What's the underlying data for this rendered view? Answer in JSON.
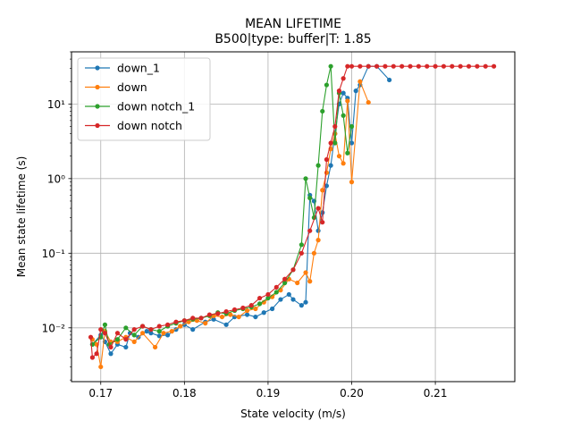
{
  "chart_data": {
    "type": "line",
    "title": "MEAN LIFETIME",
    "subtitle": "B500|type: buffer|T: 1.85",
    "xlabel": "State velocity (m/s)",
    "ylabel": "Mean state lifetime (s)",
    "xlim": [
      0.1665,
      0.2195
    ],
    "ylim": [
      0.0019,
      50
    ],
    "yscale": "log",
    "grid": true,
    "legend_position": "top-left",
    "x_ticks": [
      0.17,
      0.18,
      0.19,
      0.2,
      0.21
    ],
    "x_tick_labels": [
      "0.17",
      "0.18",
      "0.19",
      "0.20",
      "0.21"
    ],
    "y_ticks": [
      0.01,
      0.1,
      1,
      10
    ],
    "y_tick_labels": [
      "10⁻²",
      "10⁻¹",
      "10⁰",
      "10¹"
    ],
    "series": [
      {
        "name": "down_1",
        "color": "#1f77b4",
        "x": [
          0.169,
          0.17,
          0.1705,
          0.1712,
          0.172,
          0.173,
          0.1735,
          0.1745,
          0.1755,
          0.176,
          0.177,
          0.178,
          0.179,
          0.18,
          0.181,
          0.1825,
          0.1835,
          0.185,
          0.186,
          0.1875,
          0.1885,
          0.1895,
          0.1905,
          0.1915,
          0.1925,
          0.193,
          0.194,
          0.1945,
          0.195,
          0.1955,
          0.196,
          0.1965,
          0.197,
          0.1975,
          0.198,
          0.1985,
          0.199,
          0.1995,
          0.2,
          0.2005,
          0.201,
          0.202,
          0.203,
          0.2045
        ],
        "y": [
          0.006,
          0.008,
          0.0065,
          0.0045,
          0.006,
          0.0055,
          0.0085,
          0.0075,
          0.009,
          0.0085,
          0.0078,
          0.008,
          0.0095,
          0.011,
          0.0095,
          0.012,
          0.013,
          0.011,
          0.014,
          0.015,
          0.014,
          0.016,
          0.018,
          0.024,
          0.028,
          0.024,
          0.02,
          0.022,
          0.6,
          0.5,
          0.2,
          0.35,
          0.8,
          1.5,
          4,
          10,
          14,
          12,
          3,
          15,
          18,
          32,
          32,
          21
        ]
      },
      {
        "name": "down",
        "color": "#ff7f0e",
        "x": [
          0.169,
          0.1695,
          0.17,
          0.1705,
          0.1712,
          0.172,
          0.173,
          0.174,
          0.175,
          0.1765,
          0.1775,
          0.1785,
          0.1795,
          0.1805,
          0.1815,
          0.1825,
          0.1835,
          0.1845,
          0.1855,
          0.1865,
          0.1875,
          0.1885,
          0.1895,
          0.1905,
          0.1915,
          0.1925,
          0.1935,
          0.1945,
          0.195,
          0.1955,
          0.196,
          0.1965,
          0.197,
          0.1975,
          0.198,
          0.1985,
          0.199,
          0.1995,
          0.2,
          0.201,
          0.202
        ],
        "y": [
          0.007,
          0.006,
          0.003,
          0.009,
          0.0065,
          0.0065,
          0.0075,
          0.0065,
          0.0085,
          0.0055,
          0.0085,
          0.009,
          0.0105,
          0.012,
          0.0125,
          0.0115,
          0.0145,
          0.014,
          0.015,
          0.014,
          0.017,
          0.018,
          0.022,
          0.026,
          0.032,
          0.045,
          0.04,
          0.055,
          0.042,
          0.1,
          0.15,
          0.7,
          1.2,
          2.5,
          4,
          2,
          1.6,
          11,
          0.9,
          20,
          10.5
        ]
      },
      {
        "name": "down notch_1",
        "color": "#2ca02c",
        "x": [
          0.169,
          0.17,
          0.1705,
          0.171,
          0.172,
          0.173,
          0.174,
          0.175,
          0.176,
          0.177,
          0.178,
          0.179,
          0.18,
          0.181,
          0.182,
          0.183,
          0.184,
          0.185,
          0.186,
          0.187,
          0.188,
          0.189,
          0.19,
          0.191,
          0.192,
          0.193,
          0.194,
          0.1945,
          0.195,
          0.1955,
          0.196,
          0.1965,
          0.197,
          0.1975,
          0.198,
          0.1985,
          0.199,
          0.1995,
          0.2
        ],
        "y": [
          0.006,
          0.0075,
          0.011,
          0.006,
          0.007,
          0.01,
          0.008,
          0.0105,
          0.0095,
          0.009,
          0.0105,
          0.0115,
          0.0125,
          0.013,
          0.0135,
          0.0145,
          0.016,
          0.0155,
          0.017,
          0.018,
          0.019,
          0.021,
          0.025,
          0.03,
          0.04,
          0.06,
          0.13,
          1.0,
          0.55,
          0.3,
          1.5,
          8,
          18,
          32,
          3,
          14,
          7,
          2.2,
          5
        ]
      },
      {
        "name": "down notch",
        "color": "#d62728",
        "x": [
          0.1688,
          0.169,
          0.1695,
          0.17,
          0.1705,
          0.1712,
          0.172,
          0.173,
          0.174,
          0.175,
          0.176,
          0.177,
          0.178,
          0.179,
          0.18,
          0.181,
          0.182,
          0.183,
          0.184,
          0.185,
          0.186,
          0.187,
          0.188,
          0.189,
          0.19,
          0.191,
          0.192,
          0.193,
          0.194,
          0.195,
          0.196,
          0.1965,
          0.197,
          0.1975,
          0.198,
          0.1985,
          0.199,
          0.1995,
          0.2,
          0.201,
          0.202,
          0.203,
          0.204,
          0.205,
          0.206,
          0.207,
          0.208,
          0.209,
          0.21,
          0.211,
          0.212,
          0.213,
          0.214,
          0.215,
          0.216,
          0.217
        ],
        "y": [
          0.0075,
          0.004,
          0.0045,
          0.0095,
          0.0085,
          0.0055,
          0.0085,
          0.007,
          0.0095,
          0.0105,
          0.0095,
          0.0105,
          0.011,
          0.012,
          0.0125,
          0.0135,
          0.0135,
          0.015,
          0.0155,
          0.0165,
          0.0175,
          0.0185,
          0.02,
          0.025,
          0.028,
          0.035,
          0.045,
          0.06,
          0.1,
          0.2,
          0.4,
          0.26,
          1.8,
          3,
          5,
          15,
          22,
          32,
          32,
          32,
          32,
          32,
          32,
          32,
          32,
          32,
          32,
          32,
          32,
          32,
          32,
          32,
          32,
          32,
          32,
          32
        ]
      }
    ]
  }
}
